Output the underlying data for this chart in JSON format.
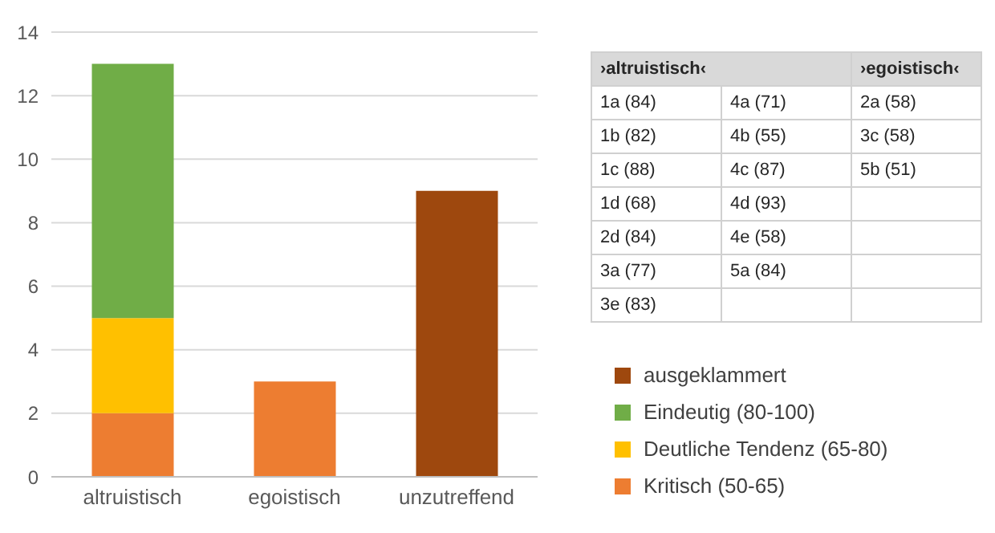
{
  "chart_data": [
    {
      "type": "bar",
      "stacked": true,
      "categories": [
        "altruistisch",
        "egoistisch",
        "unzutreffend"
      ],
      "series": [
        {
          "name": "Kritisch (50-65)",
          "color": "#ed7d31",
          "values": [
            2,
            3,
            null
          ]
        },
        {
          "name": "Deutliche Tendenz (65-80)",
          "color": "#ffc000",
          "values": [
            3,
            null,
            null
          ]
        },
        {
          "name": "Eindeutig (80-100)",
          "color": "#70ad47",
          "values": [
            8,
            null,
            null
          ]
        },
        {
          "name": "ausgeklammert",
          "color": "#9e480e",
          "values": [
            null,
            null,
            9
          ]
        }
      ],
      "ylim": [
        0,
        14
      ],
      "yticks": [
        0,
        2,
        4,
        6,
        8,
        10,
        12,
        14
      ],
      "grid": "y",
      "legend": "bottom right"
    },
    {
      "type": "other",
      "categories": [
        "›altruistisch‹",
        null,
        "›egoistisch‹"
      ],
      "cells": [
        [
          "1a (84)",
          "4a (71)",
          "2a (58)"
        ],
        [
          "1b (82)",
          "4b (55)",
          "3c (58)"
        ],
        [
          "1c (88)",
          "4c (87)",
          "5b (51)"
        ],
        [
          "1d (68)",
          "4d (93)",
          null
        ],
        [
          "2d (84)",
          "4e (58)",
          null
        ],
        [
          "3a (77)",
          "5a (84)",
          null
        ],
        [
          "3e (83)",
          null,
          null
        ]
      ]
    }
  ]
}
